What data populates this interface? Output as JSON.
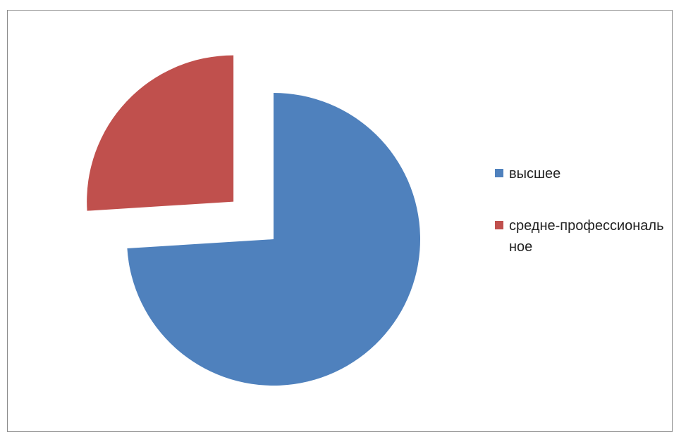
{
  "chart_data": {
    "type": "pie",
    "title": "",
    "categories": [
      "высшее",
      "средне-профессиональное"
    ],
    "values": [
      74,
      26
    ],
    "colors": [
      "#4f81bd",
      "#c0504d"
    ],
    "exploded": [
      false,
      true
    ],
    "legend_position": "right"
  },
  "legend": {
    "items": [
      {
        "label": "высшее",
        "color": "#4f81bd"
      },
      {
        "label": "средне-профессиональное",
        "color": "#c0504d"
      }
    ]
  }
}
